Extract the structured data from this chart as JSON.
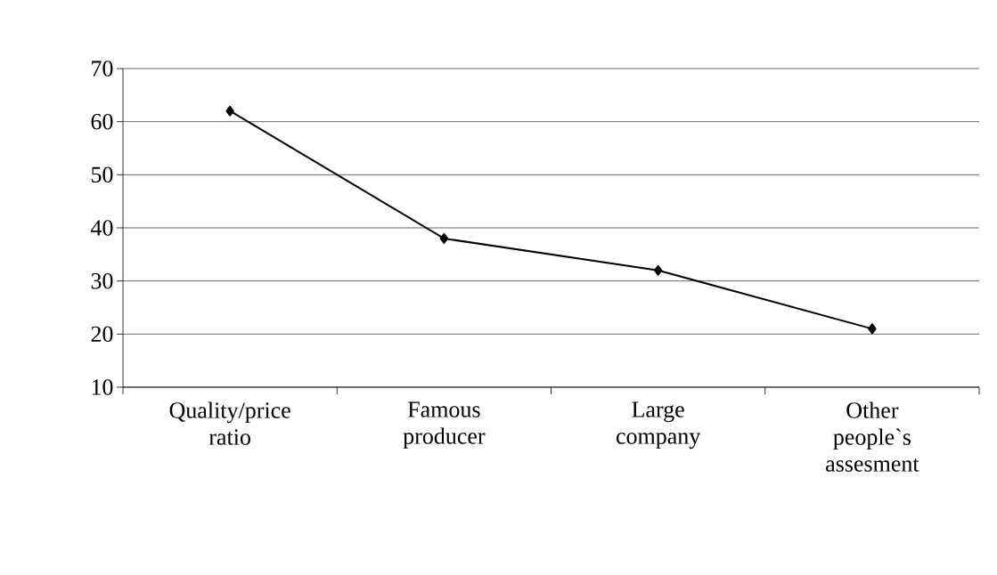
{
  "chart_data": {
    "type": "line",
    "categories": [
      "Quality/price ratio",
      "Famous producer",
      "Large company",
      "Other people`s assesment"
    ],
    "series": [
      {
        "color": "#000000",
        "values": [
          62,
          38,
          32,
          21
        ]
      }
    ],
    "ylim": [
      10,
      70
    ],
    "yticks": [
      10,
      20,
      30,
      40,
      50,
      60,
      70
    ],
    "grid": "y",
    "marker": "diamond",
    "line_style": "solid"
  }
}
